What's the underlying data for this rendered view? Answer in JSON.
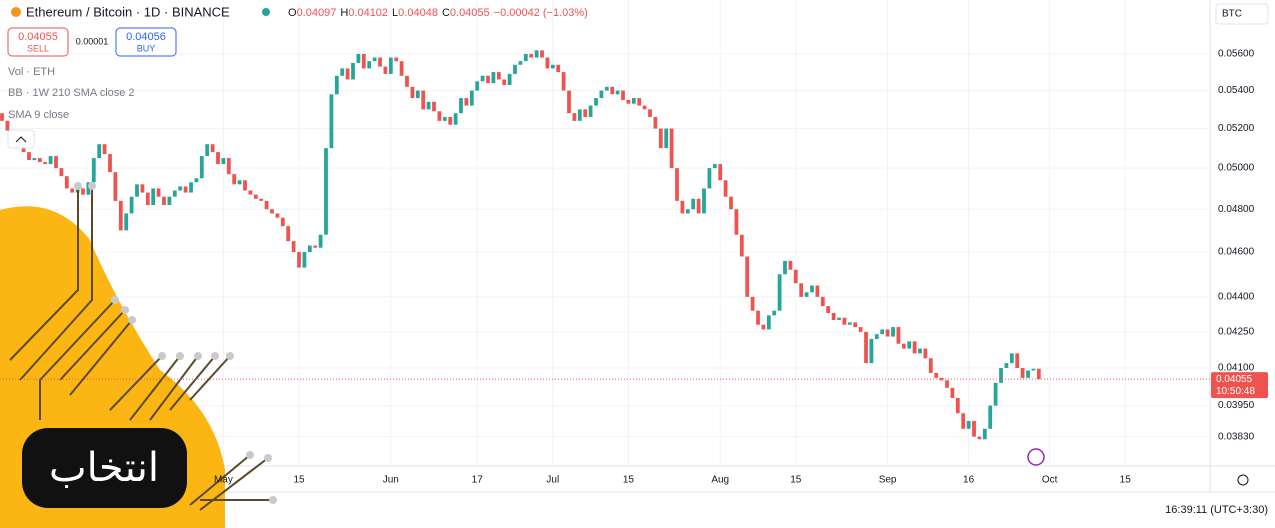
{
  "header": {
    "symbol": "Ethereum / Bitcoin · 1D · BINANCE",
    "o_key": "O",
    "o": "0.04097",
    "h_key": "H",
    "h": "0.04102",
    "l_key": "L",
    "l": "0.04048",
    "c_key": "C",
    "c": "0.04055",
    "change": "−0.00042 (−1.03%)",
    "sell_price": "0.04055",
    "sell": "SELL",
    "spread": "0.00001",
    "buy_price": "0.04056",
    "buy": "BUY",
    "indicators": [
      "Vol · ETH",
      "BB · 1W 210 SMA close 2",
      "SMA 9 close"
    ],
    "currency": "BTC",
    "clock": "16:39:11 (UTC+3:30)",
    "watermark": "انتخاب"
  },
  "chart_data": {
    "type": "candlestick",
    "open": 0.0528,
    "values": [
      0.0524,
      0.0519,
      0.0516,
      0.0512,
      0.0508,
      0.0504,
      0.0505,
      0.0503,
      0.0502,
      0.0506,
      0.05,
      0.0496,
      0.049,
      0.0488,
      0.049,
      0.0487,
      0.0493,
      0.0505,
      0.0512,
      0.0507,
      0.0498,
      0.0484,
      0.047,
      0.0478,
      0.0486,
      0.0492,
      0.0488,
      0.0482,
      0.049,
      0.0486,
      0.0482,
      0.0486,
      0.0489,
      0.0491,
      0.0488,
      0.0493,
      0.0495,
      0.0506,
      0.0512,
      0.0508,
      0.0502,
      0.0505,
      0.0497,
      0.0492,
      0.0494,
      0.0489,
      0.0487,
      0.0485,
      0.0484,
      0.048,
      0.0478,
      0.0476,
      0.0472,
      0.0465,
      0.046,
      0.0453,
      0.046,
      0.0463,
      0.0462,
      0.0468,
      0.051,
      0.0538,
      0.0548,
      0.0552,
      0.0546,
      0.0555,
      0.056,
      0.0552,
      0.0556,
      0.0558,
      0.0553,
      0.0549,
      0.0558,
      0.0556,
      0.0548,
      0.0542,
      0.0536,
      0.054,
      0.053,
      0.0534,
      0.0529,
      0.0524,
      0.0526,
      0.0522,
      0.0528,
      0.0536,
      0.0532,
      0.054,
      0.0545,
      0.0548,
      0.0544,
      0.055,
      0.0546,
      0.0543,
      0.0549,
      0.0554,
      0.0556,
      0.056,
      0.0558,
      0.0562,
      0.0558,
      0.0552,
      0.0554,
      0.055,
      0.054,
      0.0528,
      0.0524,
      0.053,
      0.0526,
      0.0532,
      0.0536,
      0.054,
      0.0542,
      0.0538,
      0.054,
      0.0535,
      0.0533,
      0.0536,
      0.0532,
      0.053,
      0.0526,
      0.052,
      0.051,
      0.052,
      0.05,
      0.0484,
      0.0478,
      0.048,
      0.0485,
      0.0478,
      0.049,
      0.05,
      0.0502,
      0.0494,
      0.0486,
      0.048,
      0.0468,
      0.0458,
      0.044,
      0.0434,
      0.0428,
      0.0426,
      0.0432,
      0.0434,
      0.045,
      0.0456,
      0.0452,
      0.0446,
      0.044,
      0.0442,
      0.0445,
      0.044,
      0.0436,
      0.0433,
      0.043,
      0.0431,
      0.0428,
      0.0429,
      0.0427,
      0.0425,
      0.0412,
      0.0422,
      0.0424,
      0.0426,
      0.0423,
      0.0427,
      0.042,
      0.0418,
      0.0421,
      0.0416,
      0.0418,
      0.0414,
      0.0408,
      0.0406,
      0.0405,
      0.0402,
      0.0398,
      0.0392,
      0.0386,
      0.0389,
      0.0383,
      0.0382,
      0.0386,
      0.0395,
      0.0404,
      0.041,
      0.0412,
      0.0416,
      0.041,
      0.0406,
      0.0409,
      0.04097,
      0.04055
    ],
    "up_color": "#26a69a",
    "down_color": "#ef5350",
    "log_scale": true,
    "grid": true,
    "ylim": [
      0.0372,
      0.05908
    ],
    "yticks": [
      {
        "value": 0.056,
        "label": "0.05600"
      },
      {
        "value": 0.054,
        "label": "0.05400"
      },
      {
        "value": 0.052,
        "label": "0.05200"
      },
      {
        "value": 0.05,
        "label": "0.05000"
      },
      {
        "value": 0.048,
        "label": "0.04800"
      },
      {
        "value": 0.046,
        "label": "0.04600"
      },
      {
        "value": 0.044,
        "label": "0.04400"
      },
      {
        "value": 0.0425,
        "label": "0.04250"
      },
      {
        "value": 0.041,
        "label": "0.04100"
      },
      {
        "value": 0.0395,
        "label": "0.03950"
      },
      {
        "value": 0.0383,
        "label": "0.03830"
      }
    ],
    "xlim": [
      -0.37,
      223.7
    ],
    "xticks": [
      {
        "value": 41,
        "label": "May"
      },
      {
        "value": 55,
        "label": "15"
      },
      {
        "value": 72,
        "label": "Jun"
      },
      {
        "value": 88,
        "label": "17"
      },
      {
        "value": 102,
        "label": "Jul"
      },
      {
        "value": 116,
        "label": "15"
      },
      {
        "value": 133,
        "label": "Aug"
      },
      {
        "value": 147,
        "label": "15"
      },
      {
        "value": 164,
        "label": "Sep"
      },
      {
        "value": 179,
        "label": "16"
      },
      {
        "value": 194,
        "label": "Oct"
      },
      {
        "value": 208,
        "label": "15"
      }
    ],
    "last_price": 0.04055,
    "countdown": "10:50:48"
  }
}
